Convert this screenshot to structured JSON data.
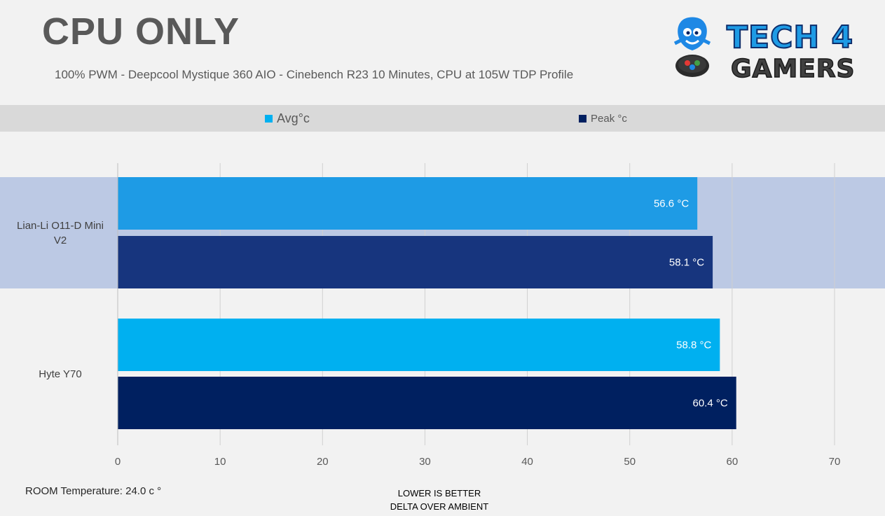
{
  "header": {
    "title": "CPU ONLY",
    "subtitle": "100% PWM - Deepcool Mystique 360 AIO - Cinebench R23 10 Minutes, CPU at 105W TDP Profile"
  },
  "logo": {
    "text_top": "TECH 4",
    "text_bottom": "GAMERS",
    "icon": "mascot-logo-icon"
  },
  "colors": {
    "avg": "#00b0f0",
    "peak": "#002060",
    "avg_highlight": "#1e9be5",
    "peak_highlight": "#17357e"
  },
  "footer": {
    "room_temperature": "ROOM Temperature: 24.0 c °",
    "note_line1": "LOWER IS BETTER",
    "note_line2": "DELTA OVER AMBIENT"
  },
  "chart_data": {
    "type": "bar",
    "orientation": "horizontal",
    "categories": [
      "Lian-Li O11-D Mini V2",
      "Hyte Y70"
    ],
    "category_labels": [
      [
        "Lian-Li O11-D Mini",
        "V2"
      ],
      [
        "Hyte Y70"
      ]
    ],
    "series": [
      {
        "name": "Avg°c",
        "values": [
          56.6,
          58.8
        ],
        "labels": [
          "56.6 °C",
          "58.8 °C"
        ]
      },
      {
        "name": "Peak °c",
        "values": [
          58.1,
          60.4
        ],
        "labels": [
          "58.1 °C",
          "60.4 °C"
        ]
      }
    ],
    "xlim": [
      0,
      70
    ],
    "xticks": [
      0,
      10,
      20,
      30,
      40,
      50,
      60,
      70
    ],
    "grid": true,
    "legend_position": "top",
    "highlighted_category": "Lian-Li O11-D Mini V2"
  }
}
